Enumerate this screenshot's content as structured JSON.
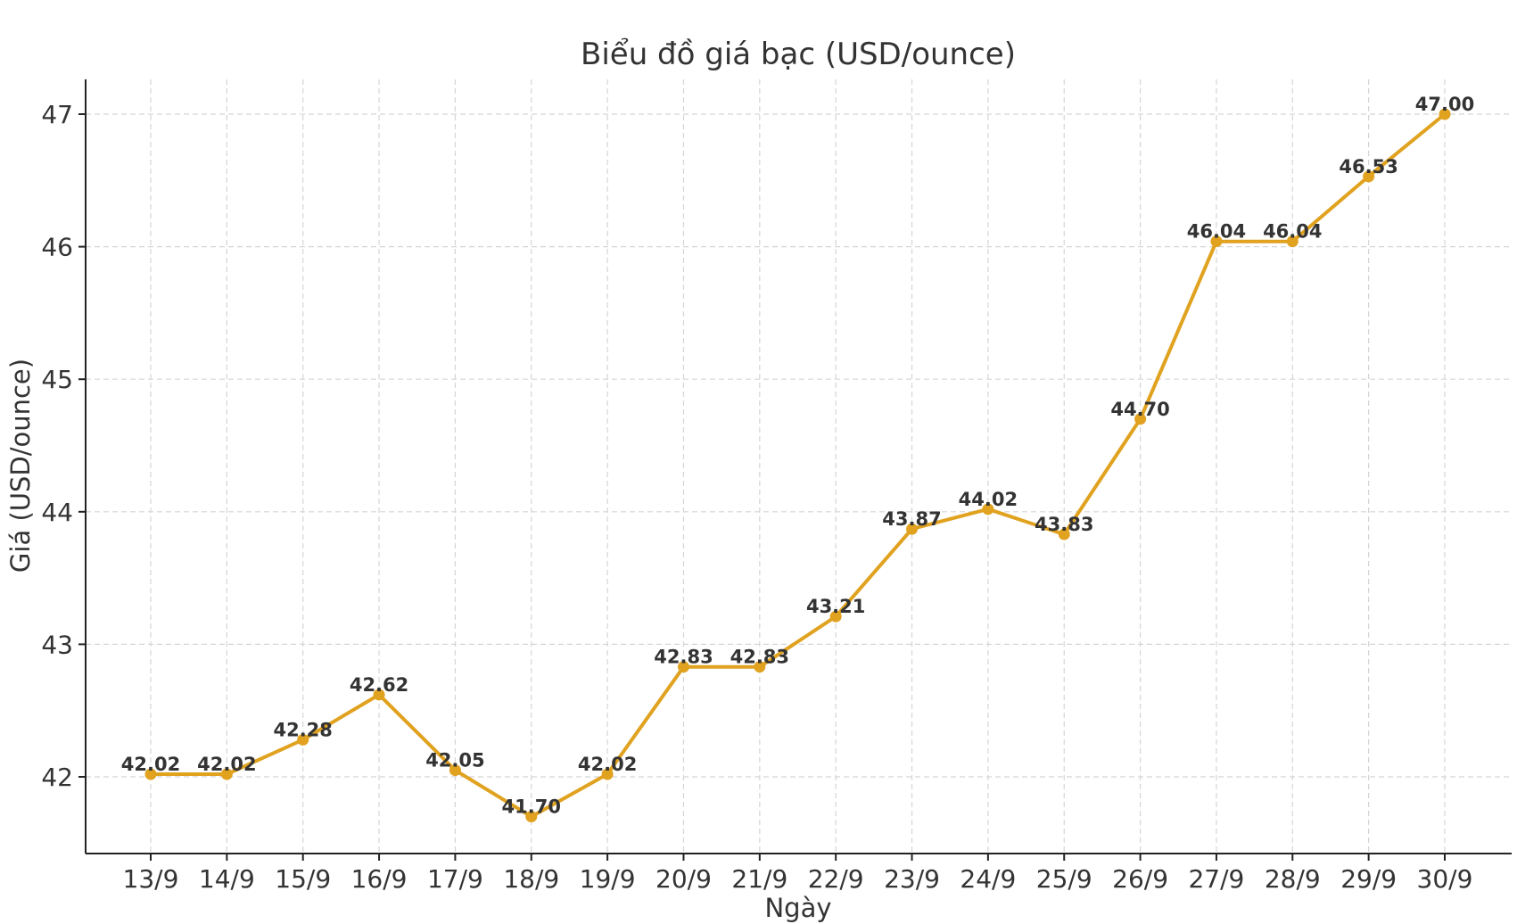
{
  "chart_data": {
    "type": "line",
    "title": "Biểu đồ giá bạc (USD/ounce)",
    "xlabel": "Ngày",
    "ylabel": "Giá (USD/ounce)",
    "categories": [
      "13/9",
      "14/9",
      "15/9",
      "16/9",
      "17/9",
      "18/9",
      "19/9",
      "20/9",
      "21/9",
      "22/9",
      "23/9",
      "24/9",
      "25/9",
      "26/9",
      "27/9",
      "28/9",
      "29/9",
      "30/9"
    ],
    "values": [
      42.02,
      42.02,
      42.28,
      42.62,
      42.05,
      41.7,
      42.02,
      42.83,
      42.83,
      43.21,
      43.87,
      44.02,
      43.83,
      44.7,
      46.04,
      46.04,
      46.53,
      47.0
    ],
    "value_labels": [
      "42.02",
      "42.02",
      "42.28",
      "42.62",
      "42.05",
      "41.70",
      "42.02",
      "42.83",
      "42.83",
      "43.21",
      "43.87",
      "44.02",
      "43.83",
      "44.70",
      "46.04",
      "46.04",
      "46.53",
      "47.00"
    ],
    "yticks": [
      42,
      43,
      44,
      45,
      46,
      47
    ],
    "ytick_labels": [
      "42",
      "43",
      "44",
      "45",
      "46",
      "47"
    ],
    "ylim": [
      41.44,
      47.26
    ],
    "grid": true,
    "grid_style": "dashed",
    "markers": true,
    "line_color": "#E0A21F",
    "text_color": "#333333",
    "grid_color": "#D5D5D5"
  }
}
